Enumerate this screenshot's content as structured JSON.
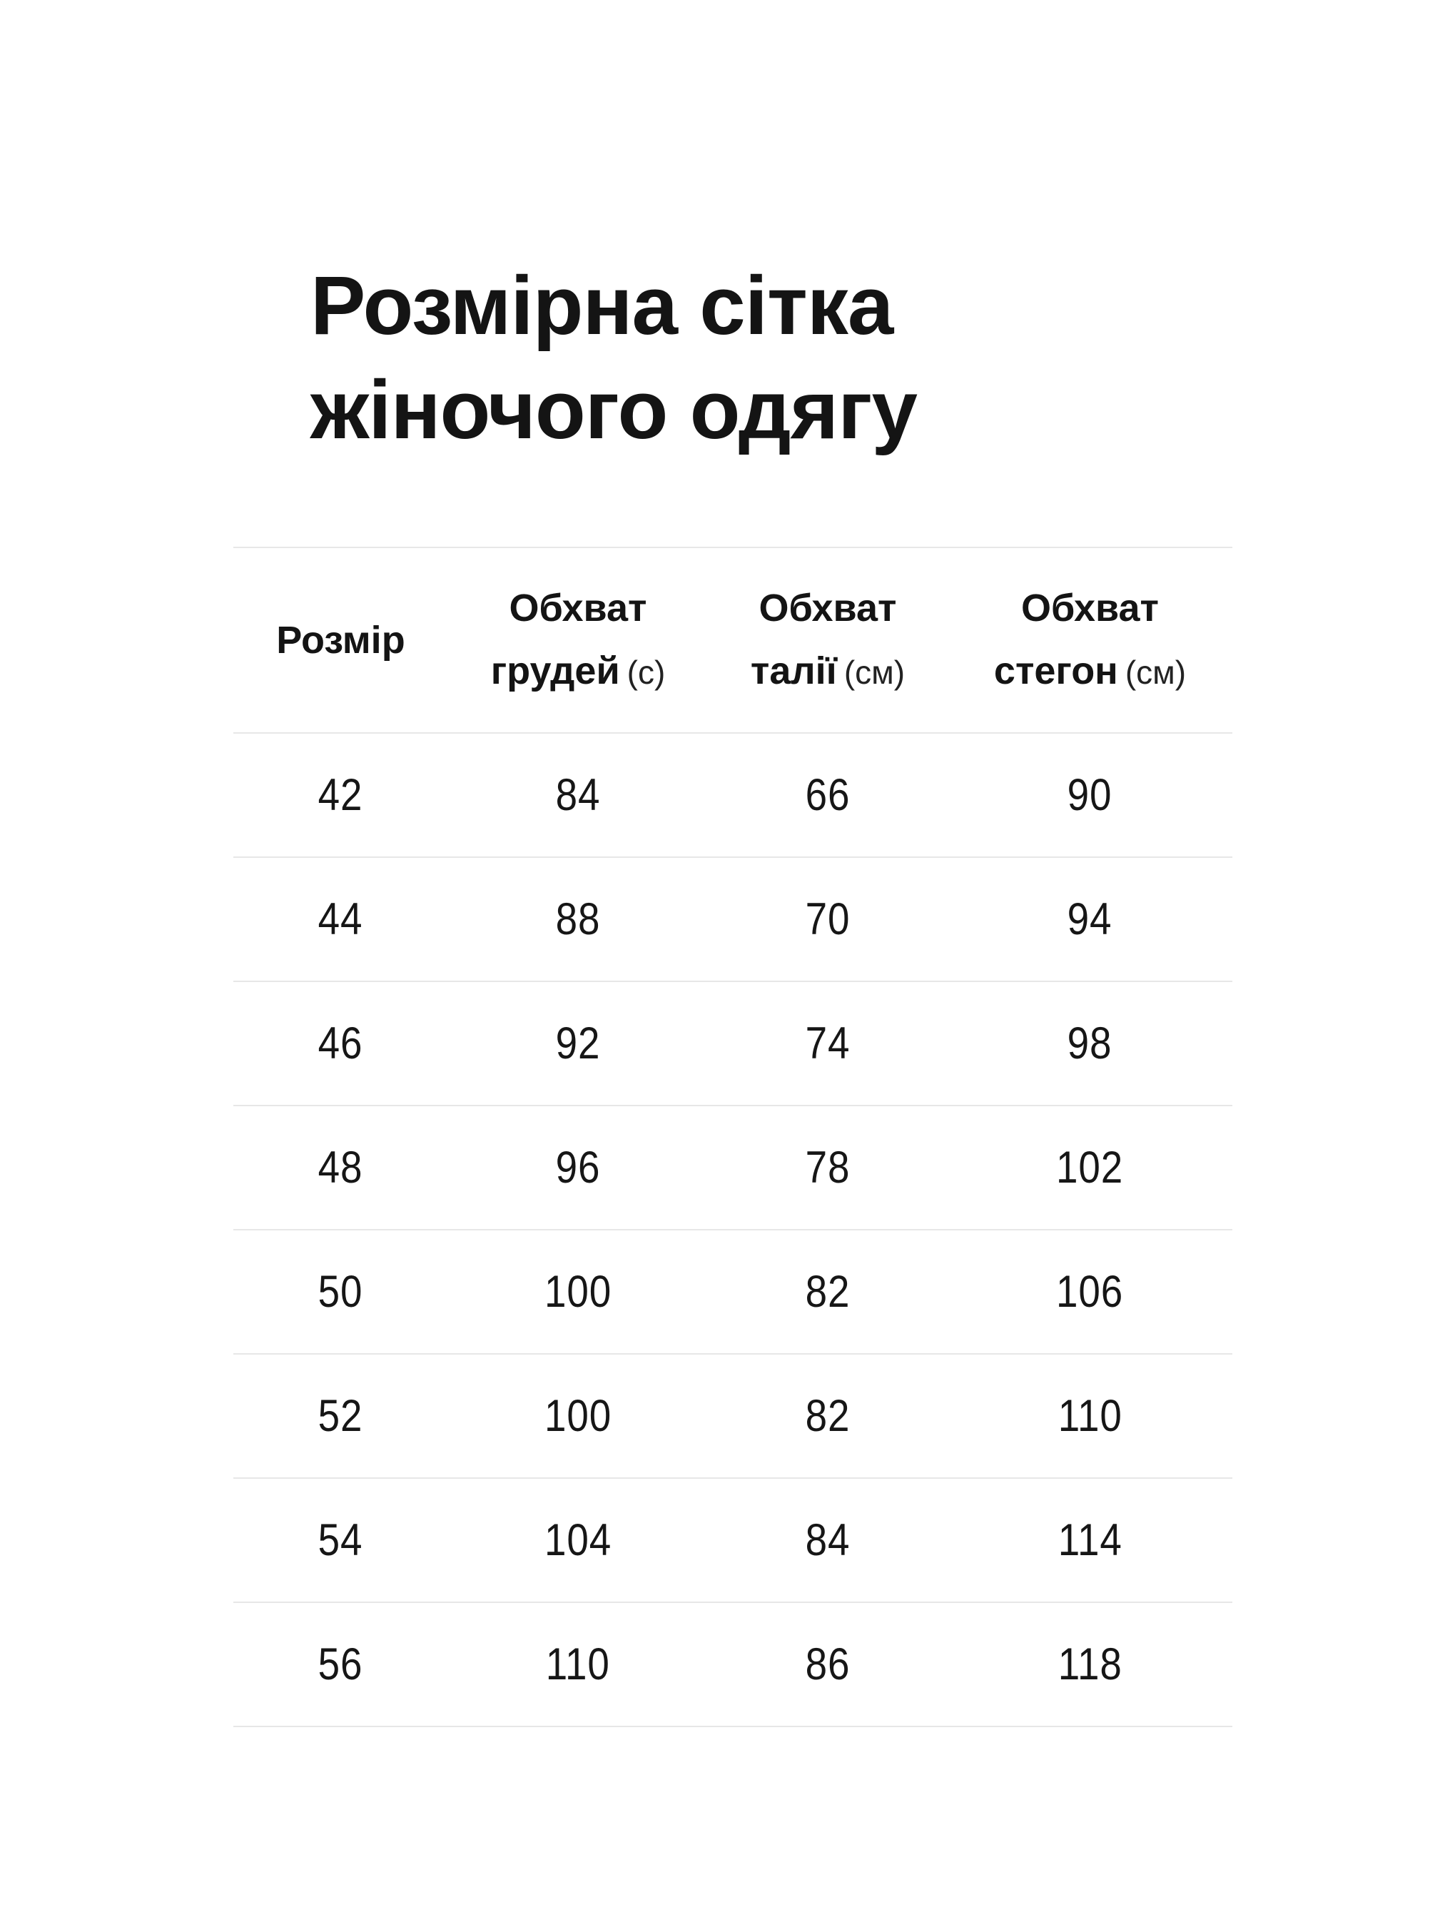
{
  "title": {
    "line1": "Розмірна сітка",
    "line2": "жіночого одягу"
  },
  "table": {
    "header": {
      "col0": {
        "label": "Розмір"
      },
      "col1": {
        "line1": "Обхват",
        "line2": "грудей",
        "unit": "(с)"
      },
      "col2": {
        "line1": "Обхват",
        "line2": "талії",
        "unit": "(см)"
      },
      "col3": {
        "line1": "Обхват",
        "line2": "стегон",
        "unit": "(см)"
      }
    },
    "rows": [
      [
        "42",
        "84",
        "66",
        "90"
      ],
      [
        "44",
        "88",
        "70",
        "94"
      ],
      [
        "46",
        "92",
        "74",
        "98"
      ],
      [
        "48",
        "96",
        "78",
        "102"
      ],
      [
        "50",
        "100",
        "82",
        "106"
      ],
      [
        "52",
        "100",
        "82",
        "110"
      ],
      [
        "54",
        "104",
        "84",
        "114"
      ],
      [
        "56",
        "110",
        "86",
        "118"
      ]
    ]
  },
  "colors": {
    "text": "#161616",
    "divider": "#e7e7e7",
    "background": "#ffffff"
  }
}
